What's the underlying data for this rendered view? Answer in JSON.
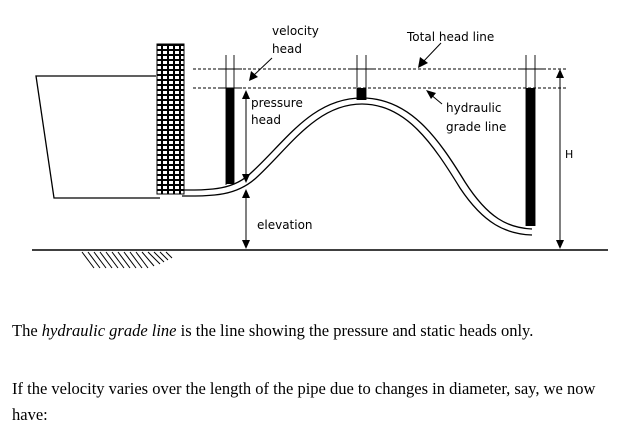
{
  "diagram": {
    "labels": {
      "velocity_head": [
        "velocity",
        "head"
      ],
      "total_head_line": "Total head line",
      "pressure_head": [
        "pressure",
        "head"
      ],
      "hydraulic_grade_line": [
        "hydraulic",
        "grade line"
      ],
      "H": "H",
      "elevation": "elevation"
    }
  },
  "text": {
    "p1_before": "The ",
    "p1_em": "hydraulic grade line",
    "p1_after": " is the line showing the pressure and static heads only.",
    "p2": "If the velocity varies over the length of the pipe due to changes in diameter, say, we now have:"
  }
}
